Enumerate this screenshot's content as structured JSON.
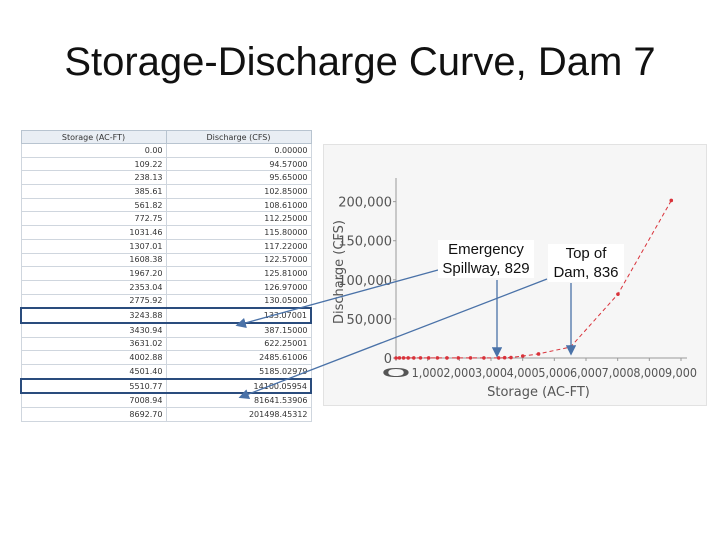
{
  "slide": {
    "title": "Storage-Discharge Curve, Dam 7"
  },
  "table": {
    "headers": [
      "Storage (AC-FT)",
      "Discharge (CFS)"
    ],
    "rows": [
      [
        "0.00",
        "0.00000"
      ],
      [
        "109.22",
        "94.57000"
      ],
      [
        "238.13",
        "95.65000"
      ],
      [
        "385.61",
        "102.85000"
      ],
      [
        "561.82",
        "108.61000"
      ],
      [
        "772.75",
        "112.25000"
      ],
      [
        "1031.46",
        "115.80000"
      ],
      [
        "1307.01",
        "117.22000"
      ],
      [
        "1608.38",
        "122.57000"
      ],
      [
        "1967.20",
        "125.81000"
      ],
      [
        "2353.04",
        "126.97000"
      ],
      [
        "2775.92",
        "130.05000"
      ],
      [
        "3243.88",
        "133.07001"
      ],
      [
        "3430.94",
        "387.15000"
      ],
      [
        "3631.02",
        "622.25001"
      ],
      [
        "4002.88",
        "2485.61006"
      ],
      [
        "4501.40",
        "5185.02979"
      ],
      [
        "5510.77",
        "14100.05954"
      ],
      [
        "7008.94",
        "81641.53906"
      ],
      [
        "8692.70",
        "201498.45312"
      ]
    ],
    "highlighted_rows": [
      12,
      17
    ]
  },
  "chart_data": {
    "type": "scatter",
    "xlabel": "Storage (AC-FT)",
    "ylabel": "Discharge (CFS)",
    "xlim": [
      0,
      9000
    ],
    "ylim": [
      0,
      220000
    ],
    "xticks": [
      0,
      1000,
      2000,
      3000,
      4000,
      5000,
      6000,
      7000,
      8000,
      9000
    ],
    "xtick_labels": [
      "0",
      "1,000",
      "2,000",
      "3,000",
      "4,000",
      "5,000",
      "6,000",
      "7,000",
      "8,000",
      "9,000"
    ],
    "yticks": [
      0,
      50000,
      100000,
      150000,
      200000
    ],
    "ytick_labels": [
      "0",
      "50,000",
      "100,000",
      "150,000",
      "200,000"
    ],
    "series": [
      {
        "color": "#d9323a",
        "line_style": "dashed",
        "x": [
          0,
          109.22,
          238.13,
          385.61,
          561.82,
          772.75,
          1031.46,
          1307.01,
          1608.38,
          1967.2,
          2353.04,
          2775.92,
          3243.88,
          3430.94,
          3631.02,
          4002.88,
          4501.4,
          5510.77,
          7008.94,
          8692.7
        ],
        "y": [
          0,
          94.57,
          95.65,
          102.85,
          108.61,
          112.25,
          115.8,
          117.22,
          122.57,
          125.81,
          126.97,
          130.05,
          133.07,
          387.15,
          622.25,
          2485.61,
          5185.03,
          14100.06,
          81641.54,
          201498.45
        ]
      }
    ],
    "annotations": [
      {
        "text_lines": [
          "Emergency",
          "Spillway, 829"
        ],
        "x": 3243.88
      },
      {
        "text_lines": [
          "Top of",
          "Dam, 836"
        ],
        "x": 5510.77
      }
    ],
    "grid": false
  },
  "colors": {
    "arrow": "#4a72a8",
    "highlight_box": "#2a4c7d",
    "series": "#d9323a"
  }
}
